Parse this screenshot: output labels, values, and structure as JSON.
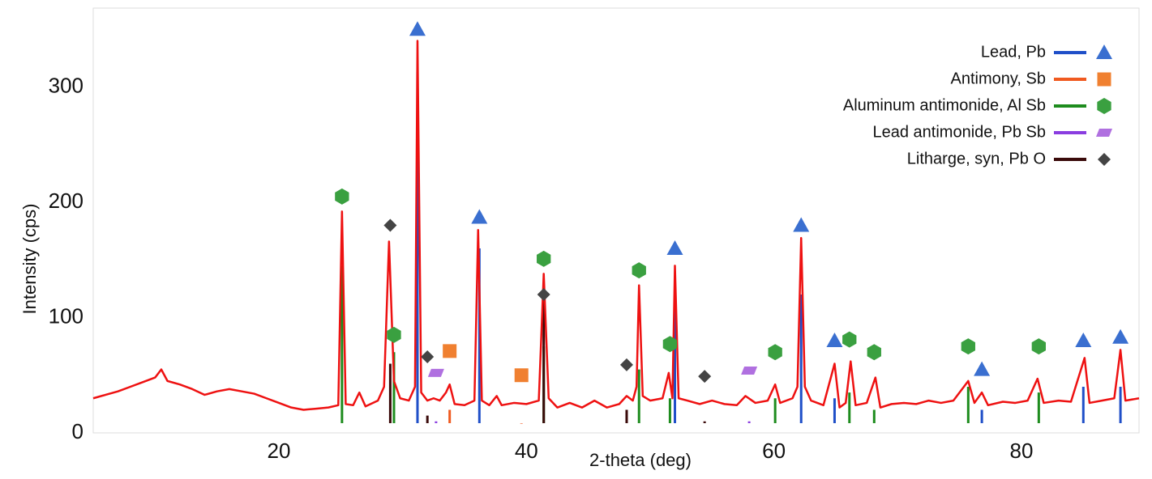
{
  "chart_data": {
    "type": "line",
    "x_label": "2-theta (deg)",
    "y_label": "Intensity (cps)",
    "xlim": [
      5,
      89.5
    ],
    "ylim": [
      0,
      360
    ],
    "xticks": [
      20,
      40,
      60,
      80
    ],
    "yticks": [
      0,
      100,
      200,
      300
    ],
    "grid": false,
    "legend": "upper right",
    "color": "#ee1111",
    "x": [
      5,
      6,
      7,
      8,
      9,
      10,
      10.5,
      11,
      12,
      13,
      14,
      15,
      16,
      17,
      18,
      19,
      20,
      21,
      22,
      23,
      24,
      24.8,
      25.1,
      25.4,
      26,
      26.5,
      27,
      28,
      28.5,
      28.9,
      29.3,
      29.8,
      30.5,
      31.0,
      31.2,
      31.5,
      32,
      32.5,
      33,
      33.5,
      33.8,
      34.2,
      35,
      35.8,
      36.1,
      36.4,
      37,
      37.6,
      38,
      39,
      40,
      41,
      41.4,
      41.8,
      42.5,
      43.5,
      44.5,
      45.5,
      46.5,
      47.5,
      48.1,
      48.6,
      48.9,
      49.1,
      49.4,
      50,
      51,
      51.5,
      51.8,
      52.0,
      52.3,
      53,
      54,
      55,
      56,
      57,
      57.7,
      58.5,
      59.5,
      60.1,
      60.5,
      61.5,
      61.9,
      62.2,
      62.5,
      63,
      64,
      64.9,
      65.3,
      65.8,
      66.2,
      66.6,
      67.5,
      68.2,
      68.6,
      69.5,
      70.5,
      71.5,
      72.5,
      73.5,
      74.5,
      75.7,
      76.2,
      76.8,
      77.3,
      78.5,
      79.5,
      80.5,
      81.3,
      81.8,
      83,
      84,
      85.1,
      85.5,
      86.5,
      87.5,
      88.0,
      88.4,
      89.5
    ],
    "values": [
      30,
      33,
      36,
      40,
      44,
      48,
      55,
      45,
      42,
      38,
      33,
      36,
      38,
      36,
      34,
      30,
      26,
      22,
      20,
      21,
      22,
      24,
      192,
      25,
      24,
      35,
      23,
      28,
      40,
      166,
      45,
      30,
      28,
      40,
      340,
      35,
      28,
      30,
      28,
      35,
      42,
      25,
      24,
      28,
      176,
      28,
      24,
      32,
      24,
      26,
      25,
      28,
      138,
      30,
      22,
      26,
      22,
      28,
      22,
      25,
      32,
      28,
      40,
      128,
      32,
      28,
      30,
      52,
      30,
      145,
      30,
      28,
      25,
      28,
      25,
      24,
      32,
      26,
      28,
      42,
      26,
      30,
      40,
      169,
      40,
      28,
      24,
      60,
      22,
      26,
      62,
      24,
      26,
      48,
      22,
      25,
      26,
      25,
      28,
      26,
      28,
      45,
      26,
      35,
      24,
      27,
      26,
      28,
      47,
      26,
      28,
      27,
      65,
      26,
      28,
      30,
      72,
      28,
      30
    ],
    "phases": [
      {
        "name": "Lead, Pb",
        "color": "#1f4fc8",
        "marker": "triangle",
        "marker_color": "#3a6fd0",
        "x": [
          31.2,
          36.2,
          52.0,
          62.2,
          64.9,
          76.8,
          85.0,
          88.0
        ],
        "values": [
          350,
          187,
          160,
          180,
          80,
          55,
          80,
          83
        ],
        "stick_values": [
          313,
          160,
          110,
          120,
          30,
          20,
          40,
          40
        ]
      },
      {
        "name": "Antimony, Sb",
        "color": "#f05a20",
        "marker": "square",
        "marker_color": "#f08030",
        "x": [
          33.8,
          39.6
        ],
        "values": [
          71,
          50
        ],
        "stick_values": [
          20,
          8
        ]
      },
      {
        "name": "Aluminum antimonide, Al Sb",
        "color": "#1e8c1e",
        "marker": "hexagon",
        "marker_color": "#3aa040",
        "x": [
          25.1,
          29.3,
          41.4,
          49.1,
          51.6,
          60.1,
          66.1,
          68.1,
          75.7,
          81.4
        ],
        "values": [
          205,
          85,
          151,
          141,
          77,
          70,
          81,
          70,
          75,
          75
        ],
        "stick_values": [
          145,
          70,
          75,
          55,
          30,
          30,
          35,
          20,
          40,
          35
        ]
      },
      {
        "name": "Lead antimonide, Pb Sb",
        "color": "#8a3de0",
        "marker": "parallelogram",
        "marker_color": "#b070e0",
        "x": [
          32.7,
          58.0
        ],
        "values": [
          52,
          54
        ],
        "stick_values": [
          10,
          10
        ]
      },
      {
        "name": "Litharge, syn, Pb O",
        "color": "#3a0a0a",
        "marker": "diamond",
        "marker_color": "#444444",
        "x": [
          29.0,
          32.0,
          41.4,
          48.1,
          54.4
        ],
        "values": [
          180,
          66,
          120,
          59,
          49
        ],
        "stick_values": [
          60,
          15,
          115,
          20,
          10
        ]
      }
    ]
  }
}
